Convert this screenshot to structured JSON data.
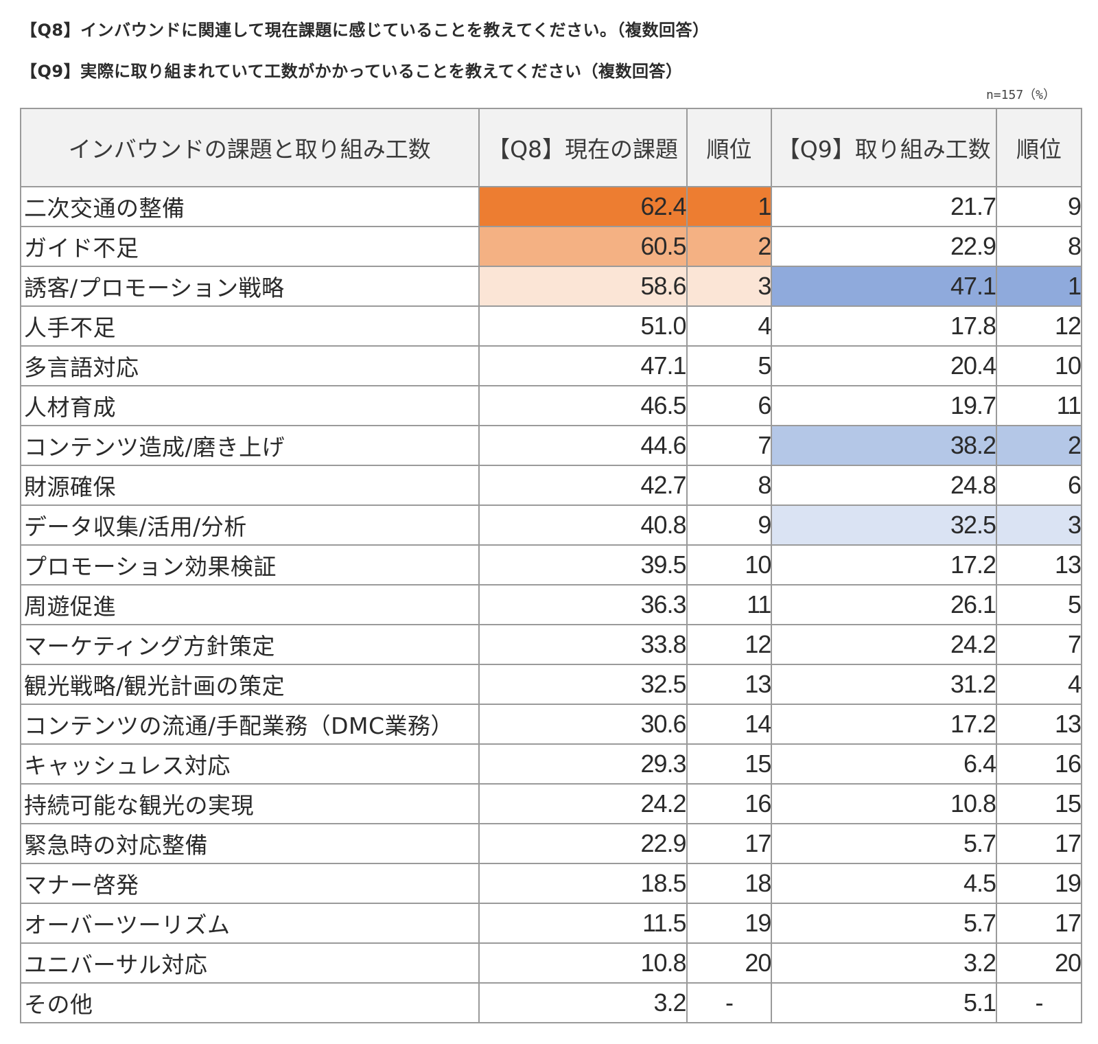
{
  "titles": {
    "q8": "【Q8】インバウンドに関連して現在課題に感じていることを教えてください。（複数回答）",
    "q9": "【Q9】実際に取り組まれていて工数がかかっていることを教えてください（複数回答）",
    "note": "n=157（%）"
  },
  "highlight_colors": {
    "q8": [
      "#ed7d31",
      "#f4b183",
      "#fbe5d6"
    ],
    "q9": [
      "#8faadc",
      "#b4c7e7",
      "#dae3f3"
    ]
  },
  "chart_data": {
    "type": "table",
    "columns": [
      "インバウンドの課題と取り組み工数",
      "【Q8】現在の課題",
      "順位",
      "【Q9】取り組み工数",
      "順位"
    ],
    "rows": [
      {
        "label": "二次交通の整備",
        "q8": "62.4",
        "q8_rank": "1",
        "q9": "21.7",
        "q9_rank": "9"
      },
      {
        "label": "ガイド不足",
        "q8": "60.5",
        "q8_rank": "2",
        "q9": "22.9",
        "q9_rank": "8"
      },
      {
        "label": "誘客/プロモーション戦略",
        "q8": "58.6",
        "q8_rank": "3",
        "q9": "47.1",
        "q9_rank": "1"
      },
      {
        "label": "人手不足",
        "q8": "51.0",
        "q8_rank": "4",
        "q9": "17.8",
        "q9_rank": "12"
      },
      {
        "label": "多言語対応",
        "q8": "47.1",
        "q8_rank": "5",
        "q9": "20.4",
        "q9_rank": "10"
      },
      {
        "label": "人材育成",
        "q8": "46.5",
        "q8_rank": "6",
        "q9": "19.7",
        "q9_rank": "11"
      },
      {
        "label": "コンテンツ造成/磨き上げ",
        "q8": "44.6",
        "q8_rank": "7",
        "q9": "38.2",
        "q9_rank": "2"
      },
      {
        "label": "財源確保",
        "q8": "42.7",
        "q8_rank": "8",
        "q9": "24.8",
        "q9_rank": "6"
      },
      {
        "label": "データ収集/活用/分析",
        "q8": "40.8",
        "q8_rank": "9",
        "q9": "32.5",
        "q9_rank": "3"
      },
      {
        "label": "プロモーション効果検証",
        "q8": "39.5",
        "q8_rank": "10",
        "q9": "17.2",
        "q9_rank": "13"
      },
      {
        "label": "周遊促進",
        "q8": "36.3",
        "q8_rank": "11",
        "q9": "26.1",
        "q9_rank": "5"
      },
      {
        "label": "マーケティング方針策定",
        "q8": "33.8",
        "q8_rank": "12",
        "q9": "24.2",
        "q9_rank": "7"
      },
      {
        "label": "観光戦略/観光計画の策定",
        "q8": "32.5",
        "q8_rank": "13",
        "q9": "31.2",
        "q9_rank": "4"
      },
      {
        "label": "コンテンツの流通/手配業務（DMC業務）",
        "q8": "30.6",
        "q8_rank": "14",
        "q9": "17.2",
        "q9_rank": "13"
      },
      {
        "label": "キャッシュレス対応",
        "q8": "29.3",
        "q8_rank": "15",
        "q9": "6.4",
        "q9_rank": "16"
      },
      {
        "label": "持続可能な観光の実現",
        "q8": "24.2",
        "q8_rank": "16",
        "q9": "10.8",
        "q9_rank": "15"
      },
      {
        "label": "緊急時の対応整備",
        "q8": "22.9",
        "q8_rank": "17",
        "q9": "5.7",
        "q9_rank": "17"
      },
      {
        "label": "マナー啓発",
        "q8": "18.5",
        "q8_rank": "18",
        "q9": "4.5",
        "q9_rank": "19"
      },
      {
        "label": "オーバーツーリズム",
        "q8": "11.5",
        "q8_rank": "19",
        "q9": "5.7",
        "q9_rank": "17"
      },
      {
        "label": "ユニバーサル対応",
        "q8": "10.8",
        "q8_rank": "20",
        "q9": "3.2",
        "q9_rank": "20"
      },
      {
        "label": "その他",
        "q8": "3.2",
        "q8_rank": "-",
        "q9": "5.1",
        "q9_rank": "-"
      }
    ]
  }
}
